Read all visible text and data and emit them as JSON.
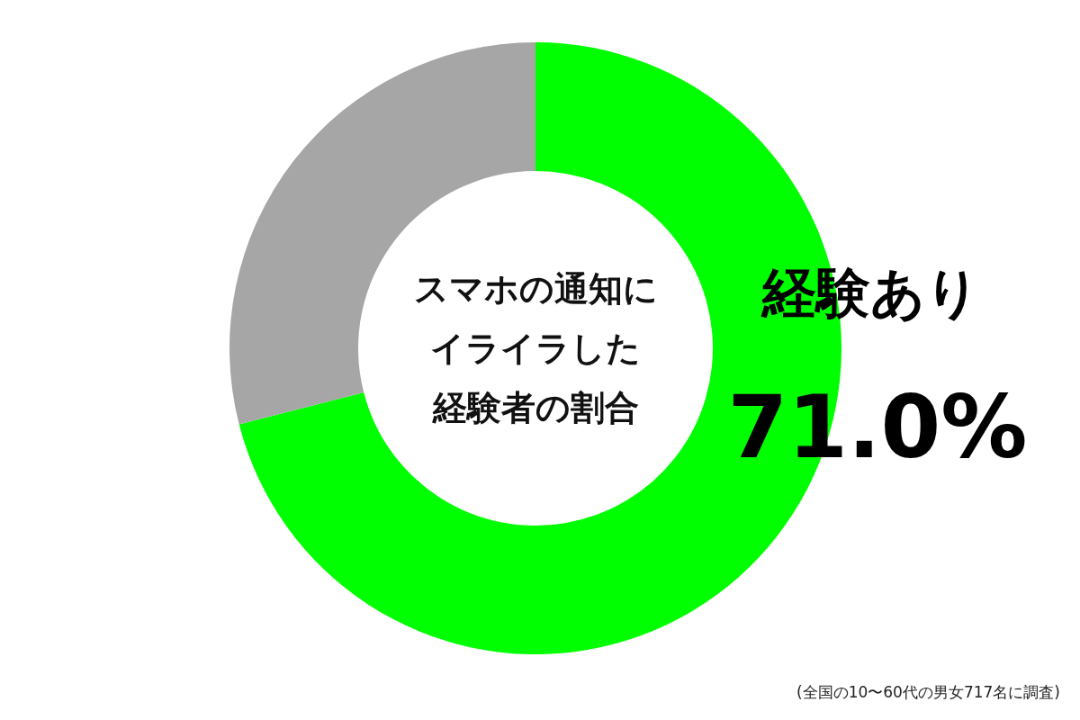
{
  "chart_data": {
    "type": "donut",
    "title": "スマホの通知にイライラした経験者の割合",
    "categories": [
      "経験あり",
      null
    ],
    "values": [
      71.0,
      29.0
    ],
    "colors": [
      "#00ff00",
      "#a6a6a6"
    ],
    "value_labels": [
      "71.0%",
      null
    ],
    "legend": false,
    "annotations": [
      "(全国の10〜60代の男女717名に調査)"
    ]
  }
}
